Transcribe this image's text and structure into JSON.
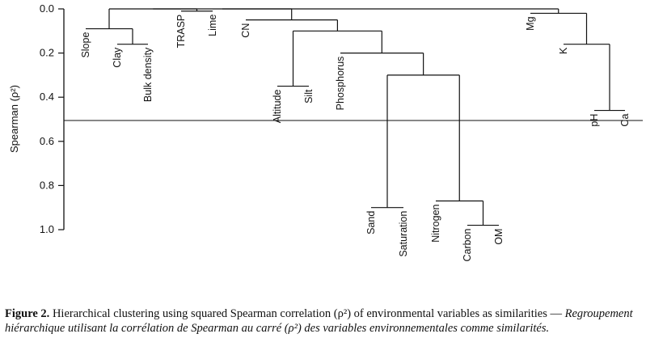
{
  "chart_data": {
    "type": "dendrogram",
    "ylabel": "Spearman (ρ²)",
    "ylim": [
      0,
      1.0
    ],
    "yticks": [
      "0.0",
      "0.2",
      "0.4",
      "0.6",
      "0.8",
      "1.0"
    ],
    "cut_height": 0.5,
    "leaves": [
      "Slope",
      "Clay",
      "Bulk density",
      "TRASP",
      "Lime",
      "CN",
      "Altitude",
      "Silt",
      "Phosphorus",
      "Sand",
      "Saturation",
      "Nitrogen",
      "Carbon",
      "OM",
      "Mg",
      "K",
      "pH",
      "Ca"
    ],
    "merges": [
      {
        "left": "Carbon",
        "right": "OM",
        "height": 0.98
      },
      {
        "left": "Sand",
        "right": "Saturation",
        "height": 0.9
      },
      {
        "left": "Nitrogen",
        "right": "Carbon+OM",
        "height": 0.87
      },
      {
        "left": "pH",
        "right": "Ca",
        "height": 0.46
      },
      {
        "left": "Altitude",
        "right": "Silt",
        "height": 0.35
      },
      {
        "left": "Sand+Saturation",
        "right": "Nitrogen+Carbon+OM",
        "height": 0.3
      },
      {
        "left": "Phosphorus",
        "right": "Sand..OM",
        "height": 0.2
      },
      {
        "left": "K",
        "right": "pH+Ca",
        "height": 0.16
      },
      {
        "left": "Clay",
        "right": "Bulk density",
        "height": 0.16
      },
      {
        "left": "Altitude+Silt",
        "right": "Phosphorus..OM",
        "height": 0.1
      },
      {
        "left": "Slope",
        "right": "Clay+Bulk density",
        "height": 0.09
      },
      {
        "left": "CN",
        "right": "Altitude..OM",
        "height": 0.05
      },
      {
        "left": "Mg",
        "right": "K+pH+Ca",
        "height": 0.02
      },
      {
        "left": "TRASP",
        "right": "Lime",
        "height": 0.01
      },
      {
        "left": "Slope..Bulk density",
        "right": "TRASP+Lime",
        "height": 0.0
      },
      {
        "left": "Slope..Lime",
        "right": "CN..OM",
        "height": 0.0
      },
      {
        "left": "Slope..OM",
        "right": "Mg..Ca",
        "height": 0.0
      }
    ]
  },
  "caption": {
    "label": "Figure 2.",
    "text_en": " Hierarchical clustering using squared Spearman correlation (ρ²) of environmental variables as similarities — ",
    "text_fr": "Regroupement hiérarchique utilisant la corrélation de Spearman au carré (ρ²) des variables environnementales comme similarités."
  }
}
